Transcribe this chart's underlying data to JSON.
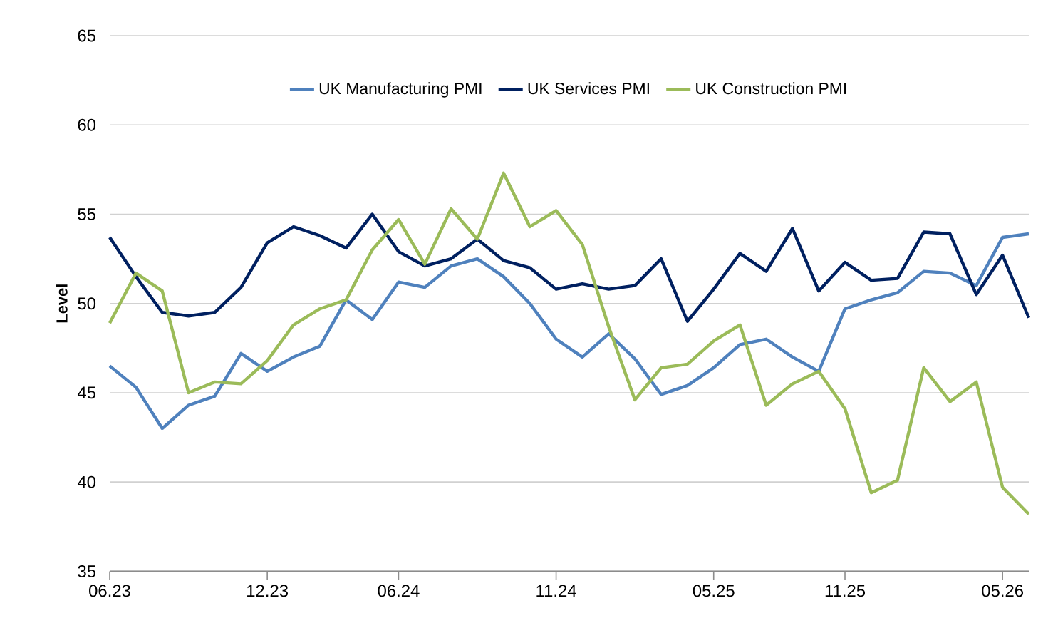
{
  "chart_data": {
    "type": "line",
    "ylabel": "Level",
    "categories": [
      "06.23",
      null,
      null,
      null,
      null,
      null,
      "12.23",
      null,
      null,
      null,
      null,
      "06.24",
      null,
      null,
      null,
      null,
      null,
      "11.24",
      null,
      null,
      null,
      null,
      null,
      "05.25",
      null,
      null,
      null,
      null,
      "11.25",
      null,
      null,
      null,
      null,
      null,
      "05.26",
      null
    ],
    "series": [
      {
        "name": "UK Manufacturing PMI",
        "color": "#4f81bd",
        "values": [
          46.5,
          45.3,
          43.0,
          44.3,
          44.8,
          47.2,
          46.2,
          47.0,
          47.6,
          50.2,
          49.1,
          51.2,
          50.9,
          52.1,
          52.5,
          51.5,
          50.0,
          48.0,
          47.0,
          48.3,
          46.9,
          44.9,
          45.4,
          46.4,
          47.7,
          48.0,
          47.0,
          46.2,
          49.7,
          50.2,
          50.6,
          51.8,
          51.7,
          51.0,
          53.7,
          53.9
        ]
      },
      {
        "name": "UK Services PMI",
        "color": "#002060",
        "values": [
          53.7,
          51.5,
          49.5,
          49.3,
          49.5,
          50.9,
          53.4,
          54.3,
          53.8,
          53.1,
          55.0,
          52.9,
          52.1,
          52.5,
          53.6,
          52.4,
          52.0,
          50.8,
          51.1,
          50.8,
          51.0,
          52.5,
          49.0,
          50.8,
          52.8,
          51.8,
          54.2,
          50.7,
          52.3,
          51.3,
          51.4,
          54.0,
          53.9,
          50.5,
          52.7,
          49.2
        ]
      },
      {
        "name": "UK Construction PMI",
        "color": "#9bbb59",
        "values": [
          48.9,
          51.7,
          50.7,
          45.0,
          45.6,
          45.5,
          46.8,
          48.8,
          49.7,
          50.2,
          53.0,
          54.7,
          52.2,
          55.3,
          53.6,
          57.3,
          54.3,
          55.2,
          53.3,
          48.7,
          44.6,
          46.4,
          46.6,
          47.9,
          48.8,
          44.3,
          45.5,
          46.2,
          44.1,
          39.4,
          40.1,
          46.4,
          44.5,
          45.6,
          39.7,
          38.2
        ]
      }
    ],
    "ylim": [
      35,
      65
    ],
    "yticks": [
      35,
      40,
      45,
      50,
      55,
      60,
      65
    ],
    "grid": "y",
    "legend": "top",
    "line_style": "solid"
  }
}
